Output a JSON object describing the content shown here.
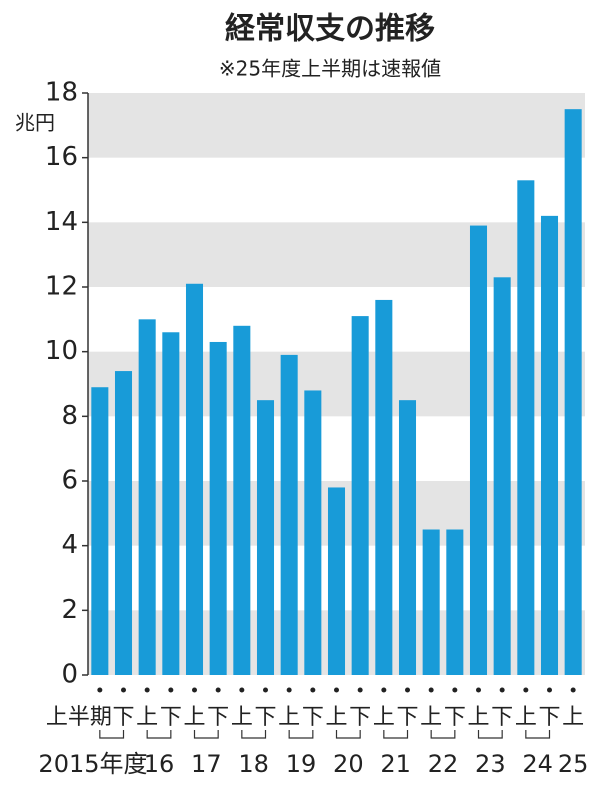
{
  "chart_data": {
    "type": "bar",
    "title": "経常収支の推移",
    "subtitle": "※25年度上半期は速報値",
    "y_unit": "兆円",
    "categories": [
      "上半期",
      "下",
      "上",
      "下",
      "上",
      "下",
      "上",
      "下",
      "上",
      "下",
      "上",
      "下",
      "上",
      "下",
      "上",
      "下",
      "上",
      "下",
      "上",
      "下",
      "上"
    ],
    "year_labels": [
      "2015年度",
      "16",
      "17",
      "18",
      "19",
      "20",
      "21",
      "22",
      "23",
      "24",
      "25"
    ],
    "values": [
      8.9,
      9.4,
      11.0,
      10.6,
      12.1,
      10.3,
      10.8,
      8.5,
      9.9,
      8.8,
      5.8,
      11.1,
      11.6,
      8.5,
      4.5,
      4.5,
      13.9,
      12.3,
      15.3,
      14.2,
      17.5
    ],
    "color": "#189bd8",
    "band_color": "#e4e4e4",
    "ylim": [
      0,
      18
    ],
    "yticks": [
      0,
      2,
      4,
      6,
      8,
      10,
      12,
      14,
      16,
      18
    ],
    "grid": true
  }
}
